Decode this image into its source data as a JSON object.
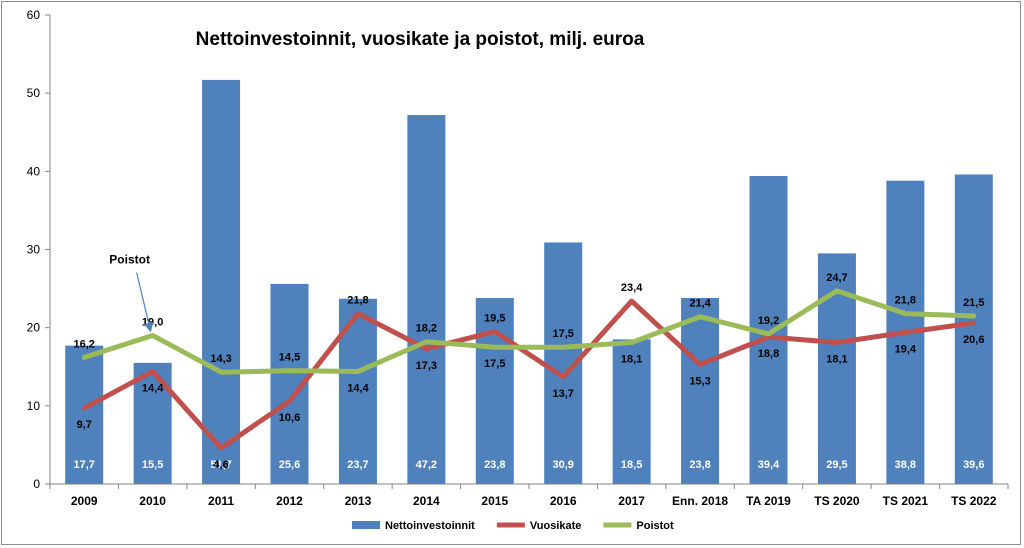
{
  "chart_data": {
    "type": "bar",
    "title": "Nettoinvestoinnit, vuosikate ja poistot, milj. euroa",
    "categories": [
      "2009",
      "2010",
      "2011",
      "2012",
      "2013",
      "2014",
      "2015",
      "2016",
      "2017",
      "Enn. 2018",
      "TA 2019",
      "TS 2020",
      "TS 2021",
      "TS 2022"
    ],
    "ylim": [
      0,
      60
    ],
    "yticks": [
      "0",
      "10",
      "20",
      "30",
      "40",
      "50",
      "60"
    ],
    "grid": false,
    "legend_position": "bottom",
    "series": [
      {
        "name": "Nettoinvestoinnit",
        "type": "bar",
        "color": "#4f81bd",
        "values": [
          17.7,
          15.5,
          51.7,
          25.6,
          23.7,
          47.2,
          23.8,
          30.9,
          18.5,
          23.8,
          39.4,
          29.5,
          38.8,
          39.6
        ],
        "labels": [
          "17,7",
          "15,5",
          "51,7",
          "25,6",
          "23,7",
          "47,2",
          "23,8",
          "30,9",
          "18,5",
          "23,8",
          "39,4",
          "29,5",
          "38,8",
          "39,6"
        ]
      },
      {
        "name": "Vuosikate",
        "type": "line",
        "color": "#c0504d",
        "values": [
          9.7,
          14.4,
          4.6,
          10.6,
          21.8,
          17.3,
          19.5,
          13.7,
          23.4,
          15.3,
          18.8,
          18.1,
          19.4,
          20.6
        ],
        "labels": [
          "9,7",
          "14,4",
          "4,6",
          "10,6",
          "21,8",
          "17,3",
          "19,5",
          "13,7",
          "23,4",
          "15,3",
          "18,8",
          "18,1",
          "19,4",
          "20,6"
        ]
      },
      {
        "name": "Poistot",
        "type": "line",
        "color": "#9bbb59",
        "values": [
          16.2,
          19.0,
          14.3,
          14.5,
          14.4,
          18.2,
          17.5,
          17.5,
          18.1,
          21.4,
          19.2,
          24.7,
          21.8,
          21.5
        ],
        "labels": [
          "16,2",
          "19,0",
          "14,3",
          "14,5",
          "14,4",
          "18,2",
          "17,5",
          "17,5",
          "18,1",
          "21,4",
          "19,2",
          "24,7",
          "21,8",
          "21,5"
        ]
      }
    ],
    "annotation": {
      "text": "Poistot",
      "target_series": 2,
      "target_index": 1
    }
  }
}
